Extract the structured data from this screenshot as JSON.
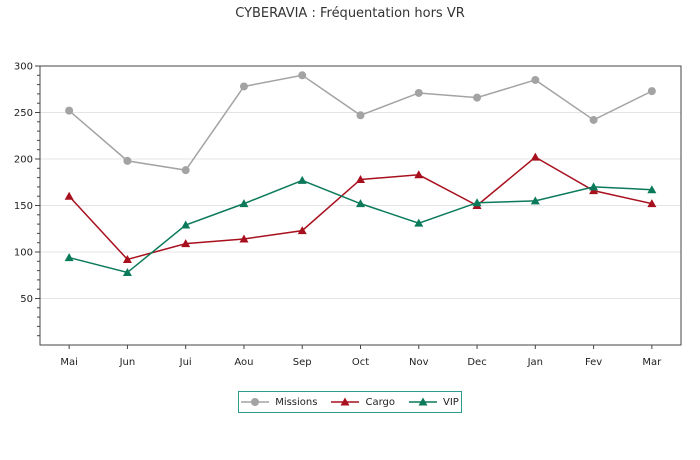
{
  "title": "CYBERAVIA : Fréquentation hors VR",
  "colors": {
    "Missions": "#a3a3a3",
    "Cargo": "#a8101e",
    "VIP": "#0b7a5a",
    "grid": "#e4e4e4",
    "legend_border": "#2a9d8f"
  },
  "chart_data": {
    "type": "line",
    "title": "CYBERAVIA : Fréquentation hors VR",
    "xlabel": "",
    "ylabel": "",
    "categories": [
      "Mai",
      "Jun",
      "Jui",
      "Aou",
      "Sep",
      "Oct",
      "Nov",
      "Dec",
      "Jan",
      "Fev",
      "Mar"
    ],
    "ylim": [
      0,
      300
    ],
    "yticks": [
      50,
      100,
      150,
      200,
      250,
      300
    ],
    "grid": true,
    "legend_position": "bottom",
    "series": [
      {
        "name": "Missions",
        "marker": "circle",
        "values": [
          252,
          198,
          188,
          278,
          290,
          247,
          271,
          266,
          285,
          242,
          273
        ]
      },
      {
        "name": "Cargo",
        "marker": "triangle",
        "values": [
          160,
          92,
          109,
          114,
          123,
          178,
          183,
          150,
          202,
          166,
          152
        ]
      },
      {
        "name": "VIP",
        "marker": "triangle",
        "values": [
          94,
          78,
          129,
          152,
          177,
          152,
          131,
          153,
          155,
          170,
          167
        ]
      }
    ]
  }
}
